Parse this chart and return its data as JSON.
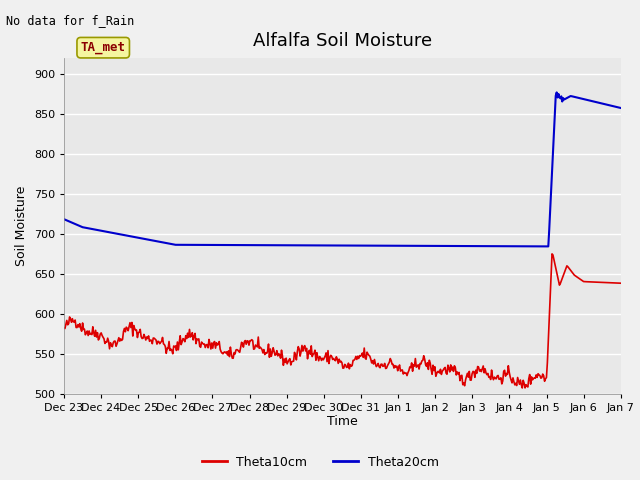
{
  "title": "Alfalfa Soil Moisture",
  "no_data_label": "No data for f_Rain",
  "ta_met_label": "TA_met",
  "ylabel": "Soil Moisture",
  "xlabel": "Time",
  "ylim": [
    500,
    920
  ],
  "yticks": [
    500,
    550,
    600,
    650,
    700,
    750,
    800,
    850,
    900
  ],
  "xtick_labels": [
    "Dec 23",
    "Dec 24",
    "Dec 25",
    "Dec 26",
    "Dec 27",
    "Dec 28",
    "Dec 29",
    "Dec 30",
    "Dec 31",
    "Jan 1",
    "Jan 2",
    "Jan 3",
    "Jan 4",
    "Jan 5",
    "Jan 6",
    "Jan 7"
  ],
  "fig_bg_color": "#f0f0f0",
  "plot_bg_color": "#e8e8e8",
  "grid_color": "#ffffff",
  "red_color": "#dd0000",
  "blue_color": "#0000cc",
  "legend_labels": [
    "Theta10cm",
    "Theta20cm"
  ],
  "title_fontsize": 13,
  "axis_label_fontsize": 9,
  "tick_fontsize": 8
}
